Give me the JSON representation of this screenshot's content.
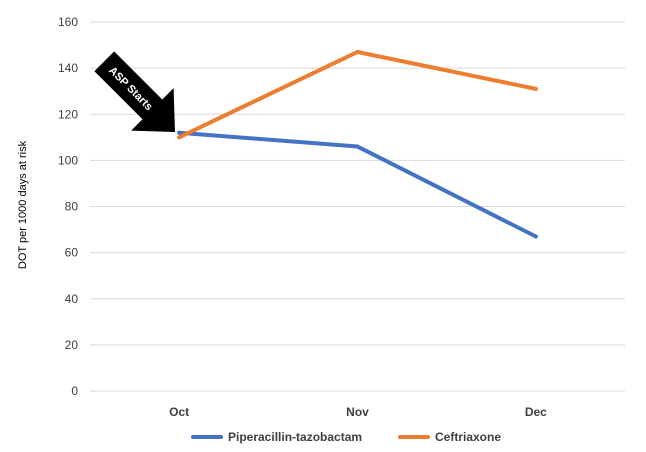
{
  "chart_data": {
    "type": "line",
    "title": "",
    "xlabel": "",
    "ylabel": "DOT per 1000 days at risk",
    "categories": [
      "Oct",
      "Nov",
      "Dec"
    ],
    "ylim": [
      0,
      160
    ],
    "yticks": [
      0,
      20,
      40,
      60,
      80,
      100,
      120,
      140,
      160
    ],
    "grid": true,
    "legend": "bottom",
    "series": [
      {
        "name": "Piperacillin-tazobactam",
        "color": "#4472c4",
        "values": [
          112,
          106,
          67
        ]
      },
      {
        "name": "Ceftriaxone",
        "color": "#ed7d31",
        "values": [
          110,
          147,
          131
        ]
      }
    ],
    "annotations": [
      {
        "text": "ASP Starts",
        "target_category": "Oct",
        "target_value": 112,
        "icon": "arrow-icon",
        "color": "#000000"
      }
    ]
  }
}
